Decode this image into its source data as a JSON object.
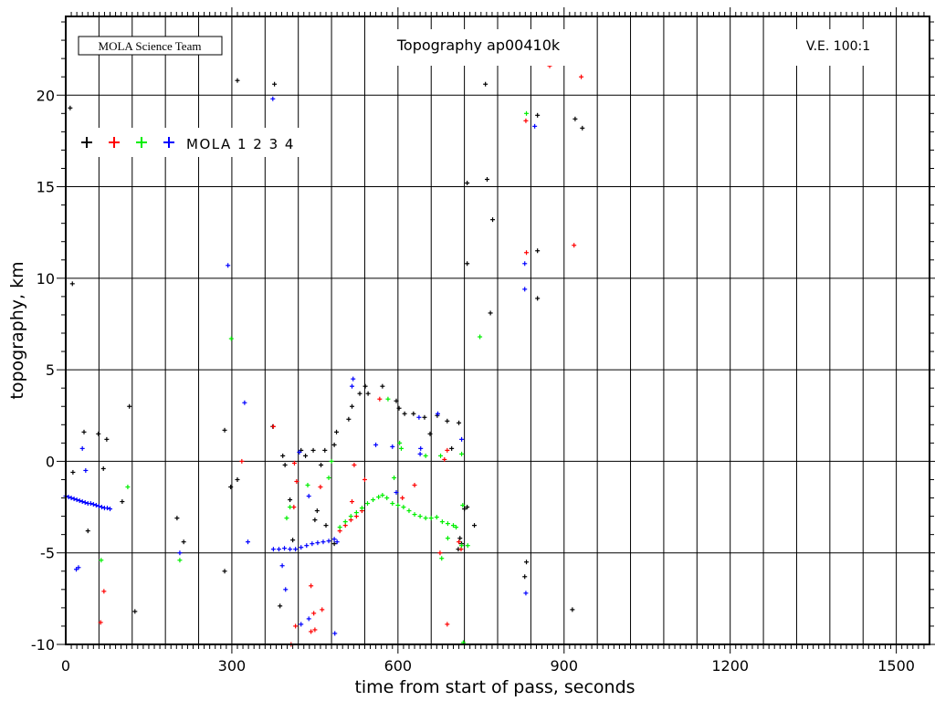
{
  "chart_data": {
    "type": "scatter",
    "title": "Topography ap00410k",
    "credit": "MOLA Science Team",
    "vertical_exaggeration": "V.E. 100:1",
    "legend_label": "MOLA 1 2 3 4",
    "legend_placement": "top-left",
    "xlabel": "time from start of pass, seconds",
    "ylabel": "topography, km",
    "xlim": [
      0,
      1560
    ],
    "ylim": [
      -10,
      24.3
    ],
    "xticks": [
      0,
      300,
      600,
      900,
      1200,
      1500
    ],
    "yticks": [
      -10,
      -5,
      0,
      5,
      10,
      15,
      20
    ],
    "grid": true,
    "grid_x_step": 60,
    "grid_y_step": 5,
    "series": [
      {
        "name": "1",
        "color": "#000000",
        "points": [
          [
            8,
            19.3
          ],
          [
            12,
            9.7
          ],
          [
            33,
            1.6
          ],
          [
            13,
            -0.6
          ],
          [
            59,
            1.5
          ],
          [
            40,
            -3.8
          ],
          [
            74,
            1.2
          ],
          [
            68,
            -0.4
          ],
          [
            102,
            -2.2
          ],
          [
            115,
            3.0
          ],
          [
            125,
            -8.2
          ],
          [
            201,
            -3.1
          ],
          [
            213,
            -4.4
          ],
          [
            287,
            1.7
          ],
          [
            287,
            -6.0
          ],
          [
            310,
            20.8
          ],
          [
            298,
            -1.4
          ],
          [
            310,
            -1.0
          ],
          [
            377,
            20.6
          ],
          [
            374,
            1.9
          ],
          [
            387,
            -7.9
          ],
          [
            392,
            0.3
          ],
          [
            396,
            -0.2
          ],
          [
            405,
            -2.1
          ],
          [
            425,
            0.6
          ],
          [
            433,
            0.3
          ],
          [
            447,
            0.6
          ],
          [
            468,
            0.6
          ],
          [
            461,
            -0.2
          ],
          [
            450,
            -3.2
          ],
          [
            485,
            0.9
          ],
          [
            489,
            1.6
          ],
          [
            511,
            2.3
          ],
          [
            517,
            3.0
          ],
          [
            531,
            3.7
          ],
          [
            541,
            4.1
          ],
          [
            546,
            3.7
          ],
          [
            572,
            4.1
          ],
          [
            597,
            3.3
          ],
          [
            602,
            2.9
          ],
          [
            612,
            2.6
          ],
          [
            628,
            2.6
          ],
          [
            648,
            2.4
          ],
          [
            658,
            1.5
          ],
          [
            671,
            2.5
          ],
          [
            689,
            2.2
          ],
          [
            697,
            0.7
          ],
          [
            710,
            2.1
          ],
          [
            738,
            -3.5
          ],
          [
            720,
            -2.6
          ],
          [
            725,
            -2.5
          ],
          [
            758,
            20.6
          ],
          [
            725,
            15.2
          ],
          [
            761,
            15.4
          ],
          [
            771,
            13.2
          ],
          [
            725,
            10.8
          ],
          [
            767,
            8.1
          ],
          [
            829,
            -6.3
          ],
          [
            832,
            -5.5
          ],
          [
            852,
            18.9
          ],
          [
            852,
            11.5
          ],
          [
            852,
            8.9
          ],
          [
            920,
            18.7
          ],
          [
            933,
            18.2
          ],
          [
            915,
            -8.1
          ],
          [
            410,
            -4.3
          ],
          [
            454,
            -2.7
          ],
          [
            470,
            -3.5
          ],
          [
            485,
            -4.5
          ],
          [
            715,
            -4.5
          ],
          [
            712,
            -4.2
          ],
          [
            709,
            -4.8
          ]
        ]
      },
      {
        "name": "2",
        "color": "#ff0000",
        "points": [
          [
            69,
            -7.1
          ],
          [
            63,
            -8.8
          ],
          [
            318,
            0.0
          ],
          [
            375,
            1.9
          ],
          [
            413,
            -0.1
          ],
          [
            412,
            -2.5
          ],
          [
            443,
            -6.8
          ],
          [
            448,
            -8.3
          ],
          [
            443,
            -9.3
          ],
          [
            450,
            -9.2
          ],
          [
            463,
            -8.1
          ],
          [
            517,
            -2.2
          ],
          [
            521,
            -0.2
          ],
          [
            567,
            3.4
          ],
          [
            608,
            -2.0
          ],
          [
            676,
            -5.0
          ],
          [
            689,
            -8.9
          ],
          [
            684,
            0.1
          ],
          [
            689,
            0.6
          ],
          [
            417,
            -1.1
          ],
          [
            415,
            -9.0
          ],
          [
            407,
            -10.0
          ],
          [
            874,
            21.6
          ],
          [
            931,
            21.0
          ],
          [
            831,
            18.6
          ],
          [
            832,
            11.4
          ],
          [
            918,
            11.8
          ],
          [
            460,
            -1.4
          ],
          [
            540,
            -1.0
          ],
          [
            630,
            -1.3
          ],
          [
            495,
            -3.8
          ],
          [
            505,
            -3.5
          ],
          [
            515,
            -3.2
          ],
          [
            525,
            -3.0
          ],
          [
            535,
            -2.7
          ],
          [
            710,
            -4.4
          ],
          [
            714,
            -4.8
          ]
        ]
      },
      {
        "name": "3",
        "color": "#00ee00",
        "points": [
          [
            64,
            -5.4
          ],
          [
            112,
            -1.4
          ],
          [
            206,
            -5.4
          ],
          [
            299,
            6.7
          ],
          [
            480,
            0.0
          ],
          [
            475,
            -0.9
          ],
          [
            405,
            -2.5
          ],
          [
            437,
            -1.3
          ],
          [
            399,
            -3.1
          ],
          [
            582,
            3.4
          ],
          [
            603,
            1.0
          ],
          [
            606,
            0.7
          ],
          [
            593,
            -0.9
          ],
          [
            650,
            0.3
          ],
          [
            677,
            0.3
          ],
          [
            715,
            0.4
          ],
          [
            717,
            -2.4
          ],
          [
            726,
            -4.6
          ],
          [
            718,
            -9.9
          ],
          [
            748,
            6.8
          ],
          [
            832,
            19.0
          ],
          [
            679,
            -5.3
          ],
          [
            690,
            -4.2
          ],
          [
            495,
            -3.6
          ],
          [
            505,
            -3.3
          ],
          [
            515,
            -3.0
          ],
          [
            525,
            -2.8
          ],
          [
            535,
            -2.55
          ],
          [
            545,
            -2.3
          ],
          [
            555,
            -2.1
          ],
          [
            565,
            -1.95
          ],
          [
            572,
            -1.85
          ],
          [
            580,
            -2.0
          ],
          [
            590,
            -2.3
          ],
          [
            600,
            -2.4
          ],
          [
            610,
            -2.5
          ],
          [
            620,
            -2.7
          ],
          [
            630,
            -2.9
          ],
          [
            640,
            -3.0
          ],
          [
            650,
            -3.1
          ],
          [
            660,
            -3.1
          ],
          [
            670,
            -3.05
          ],
          [
            680,
            -3.3
          ],
          [
            690,
            -3.4
          ],
          [
            700,
            -3.5
          ],
          [
            705,
            -3.6
          ],
          [
            715,
            -4.6
          ]
        ]
      },
      {
        "name": "4",
        "color": "#0000ff",
        "points": [
          [
            30,
            0.7
          ],
          [
            36,
            -0.5
          ],
          [
            23,
            -5.8
          ],
          [
            19,
            -5.9
          ],
          [
            206,
            -5.0
          ],
          [
            293,
            10.7
          ],
          [
            323,
            3.2
          ],
          [
            329,
            -4.4
          ],
          [
            374,
            19.8
          ],
          [
            391,
            -5.7
          ],
          [
            397,
            -7.0
          ],
          [
            425,
            -8.9
          ],
          [
            439,
            -8.6
          ],
          [
            486,
            -9.4
          ],
          [
            422,
            0.5
          ],
          [
            439,
            -1.9
          ],
          [
            519,
            4.5
          ],
          [
            517,
            4.1
          ],
          [
            560,
            0.9
          ],
          [
            590,
            0.8
          ],
          [
            597,
            -1.7
          ],
          [
            638,
            2.4
          ],
          [
            641,
            0.7
          ],
          [
            672,
            2.6
          ],
          [
            715,
            1.2
          ],
          [
            640,
            0.4
          ],
          [
            829,
            10.8
          ],
          [
            829,
            9.4
          ],
          [
            831,
            -7.2
          ],
          [
            847,
            18.3
          ],
          [
            0,
            -1.9
          ],
          [
            10,
            -2.0
          ],
          [
            20,
            -2.1
          ],
          [
            30,
            -2.2
          ],
          [
            40,
            -2.3
          ],
          [
            50,
            -2.35
          ],
          [
            60,
            -2.45
          ],
          [
            70,
            -2.55
          ],
          [
            80,
            -2.6
          ],
          [
            5,
            -1.95
          ],
          [
            15,
            -2.05
          ],
          [
            25,
            -2.15
          ],
          [
            35,
            -2.25
          ],
          [
            45,
            -2.3
          ],
          [
            55,
            -2.4
          ],
          [
            65,
            -2.5
          ],
          [
            75,
            -2.55
          ],
          [
            375,
            -4.8
          ],
          [
            385,
            -4.8
          ],
          [
            395,
            -4.75
          ],
          [
            405,
            -4.8
          ],
          [
            415,
            -4.8
          ],
          [
            425,
            -4.7
          ],
          [
            435,
            -4.6
          ],
          [
            445,
            -4.5
          ],
          [
            455,
            -4.45
          ],
          [
            465,
            -4.4
          ],
          [
            475,
            -4.35
          ],
          [
            485,
            -4.25
          ],
          [
            490,
            -4.4
          ]
        ]
      }
    ]
  }
}
